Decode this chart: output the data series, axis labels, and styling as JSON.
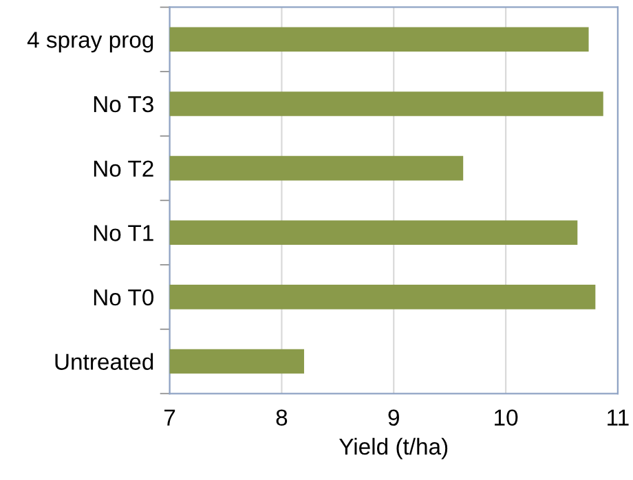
{
  "chart_data": {
    "type": "bar",
    "orientation": "horizontal",
    "xlabel": "Yield (t/ha)",
    "categories": [
      "4 spray prog",
      "No T3",
      "No T2",
      "No T1",
      "No T0",
      "Untreated"
    ],
    "values": [
      10.74,
      10.87,
      9.62,
      10.64,
      10.8,
      8.2
    ],
    "color": "#8a9a4a",
    "xlim": [
      7,
      11
    ],
    "xticks": [
      7,
      8,
      9,
      10,
      11
    ],
    "grid": "x"
  }
}
